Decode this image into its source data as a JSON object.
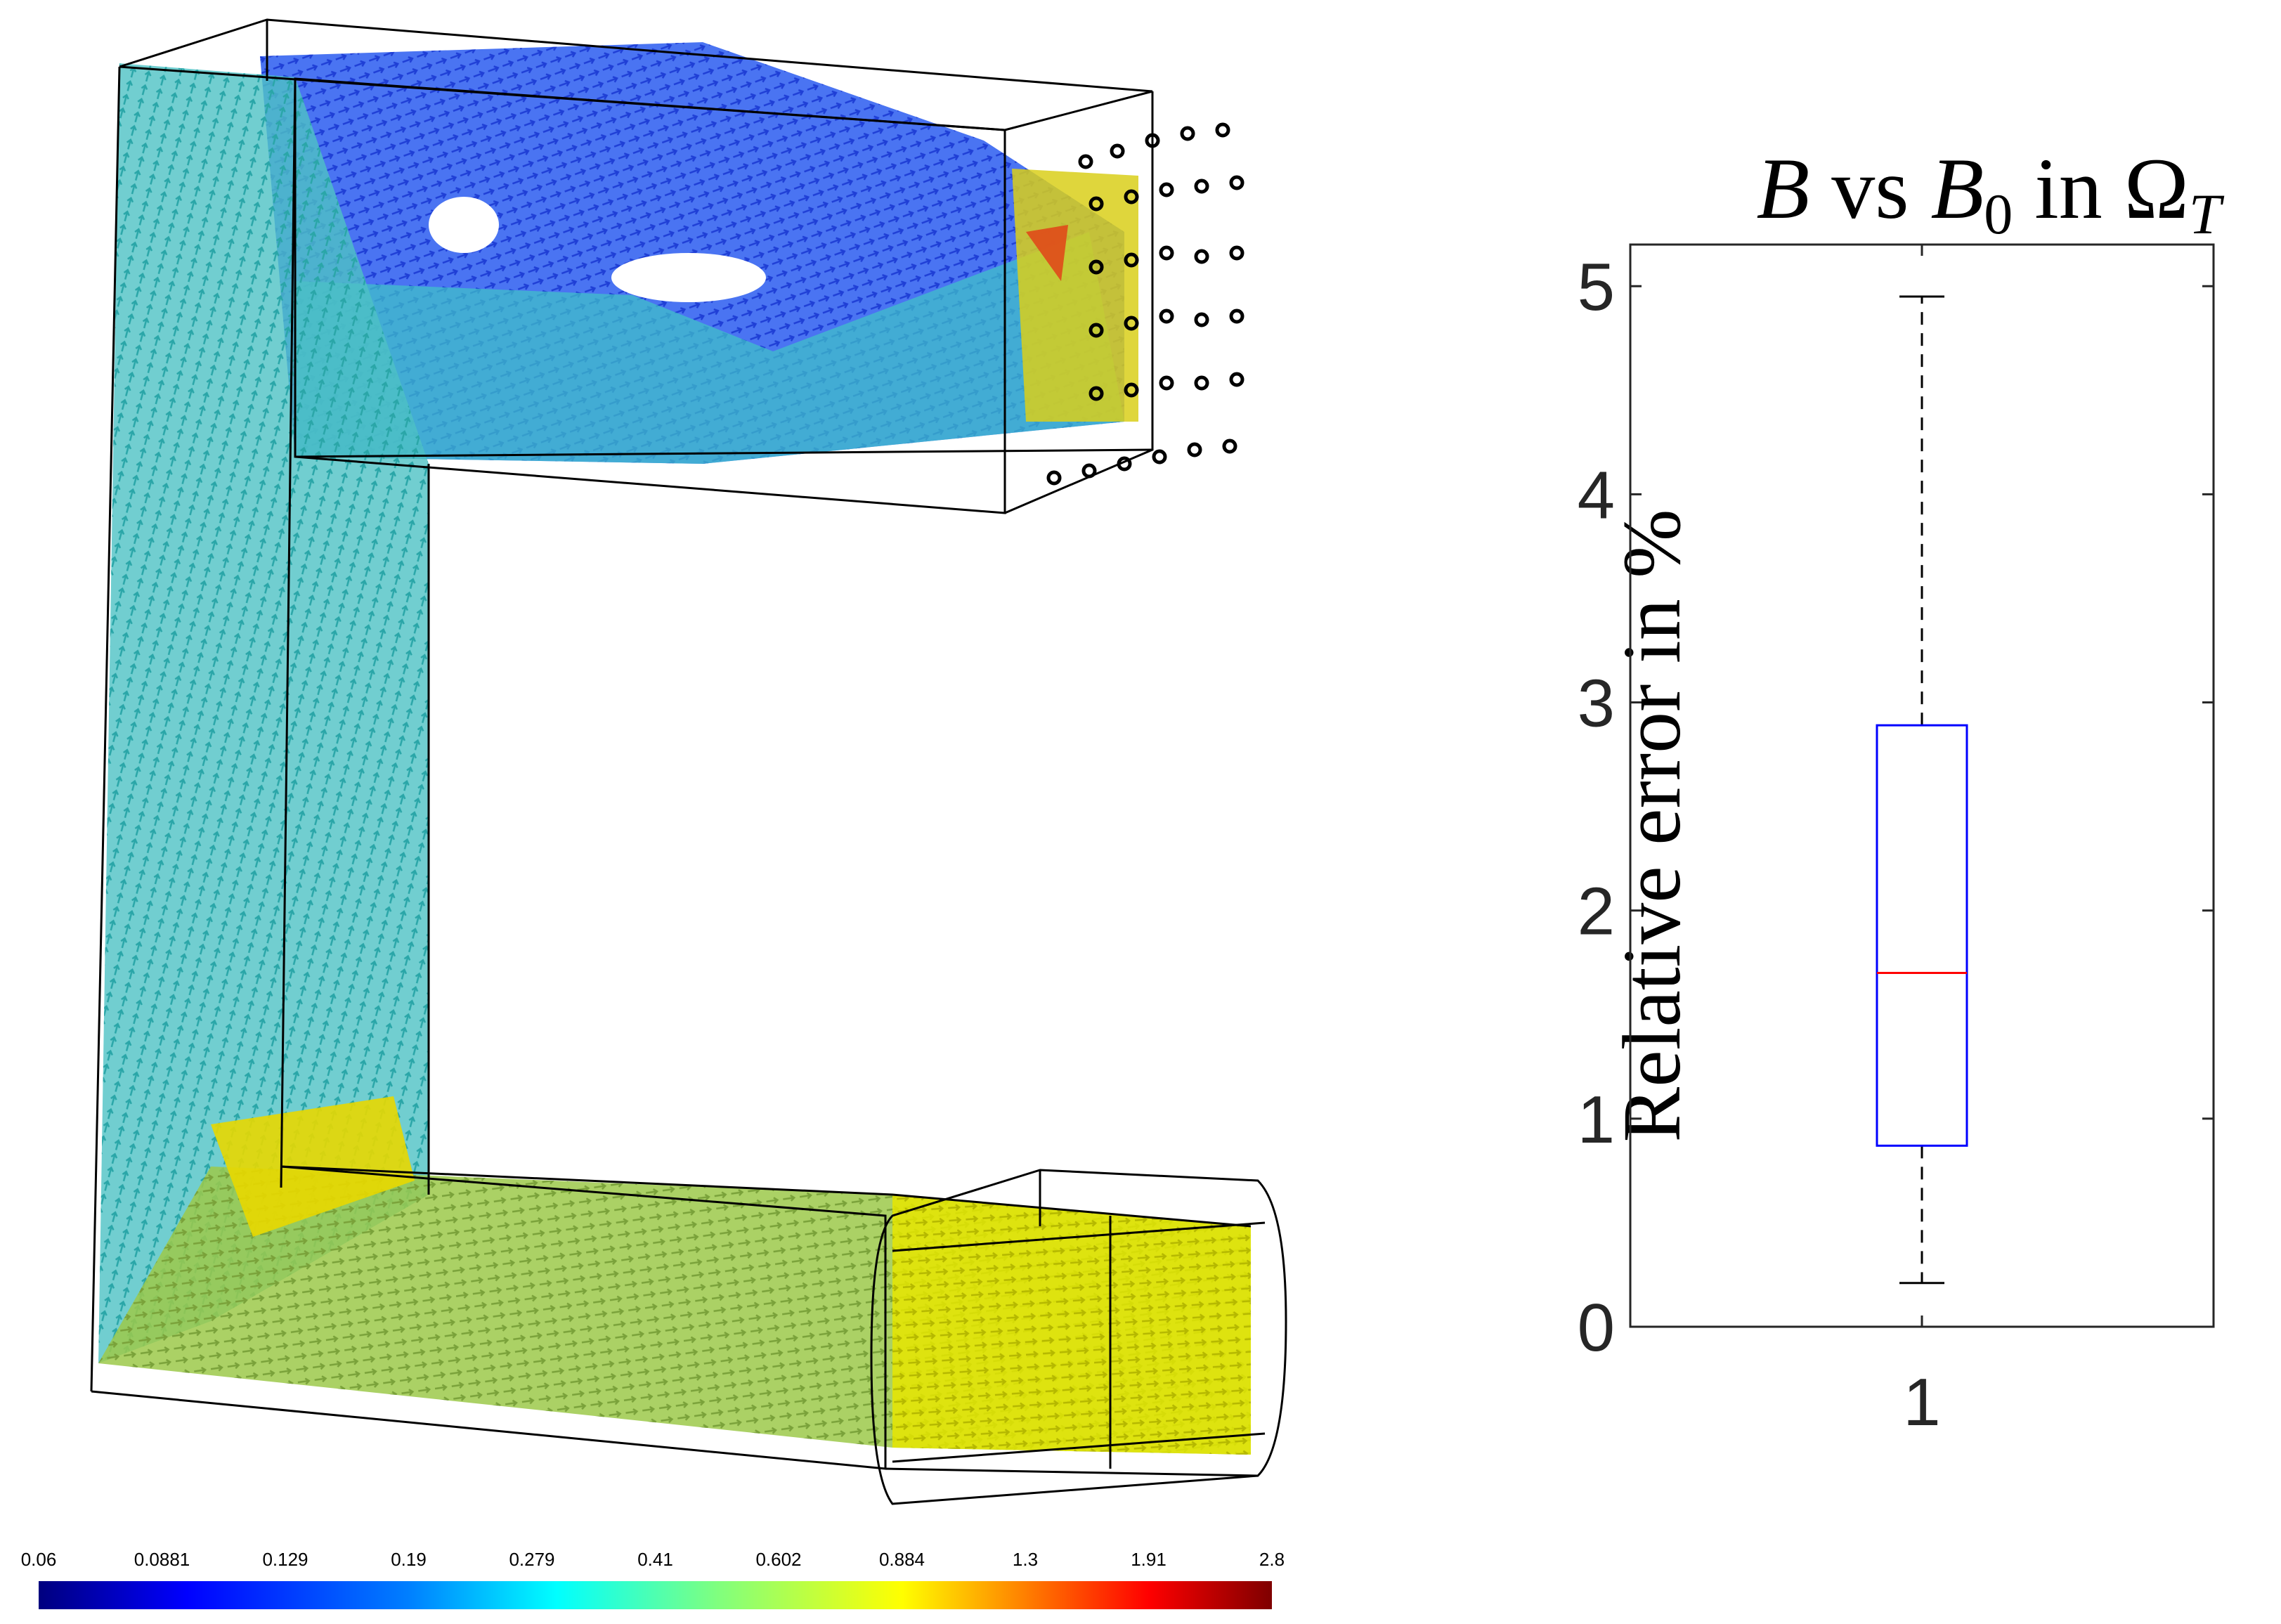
{
  "vector_field": {
    "colorbar": {
      "ticks": [
        "0.06",
        "0.0881",
        "0.129",
        "0.19",
        "0.279",
        "0.41",
        "0.602",
        "0.884",
        "1.3",
        "1.91",
        "2.8"
      ],
      "colormap": [
        "#00007f",
        "#0000ff",
        "#007fff",
        "#00ffff",
        "#7fff7f",
        "#ffff00",
        "#ff7f00",
        "#ff0000",
        "#7f0000"
      ],
      "scale": "log",
      "range": [
        0.06,
        2.8
      ]
    }
  },
  "chart_data": {
    "type": "box",
    "title": "B vs B0 in ΩT",
    "title_parts": {
      "B1": "B",
      "vs": " vs ",
      "B2": "B",
      "B2_sub": "0",
      "in": " in ",
      "omega": "Ω",
      "omega_sub": "T"
    },
    "xlabel": "",
    "ylabel": "Relative error in %",
    "categories": [
      "1"
    ],
    "ylim": [
      0,
      5.2
    ],
    "yticks": [
      "0",
      "1",
      "2",
      "3",
      "4",
      "5"
    ],
    "boxes": [
      {
        "name": "1",
        "whisker_low": 0.21,
        "q1": 0.87,
        "median": 1.7,
        "q3": 2.89,
        "whisker_high": 4.95
      }
    ],
    "colors": {
      "box": "#0000ff",
      "median": "#ff0000",
      "whisker": "#000000",
      "axis": "#262626"
    }
  }
}
